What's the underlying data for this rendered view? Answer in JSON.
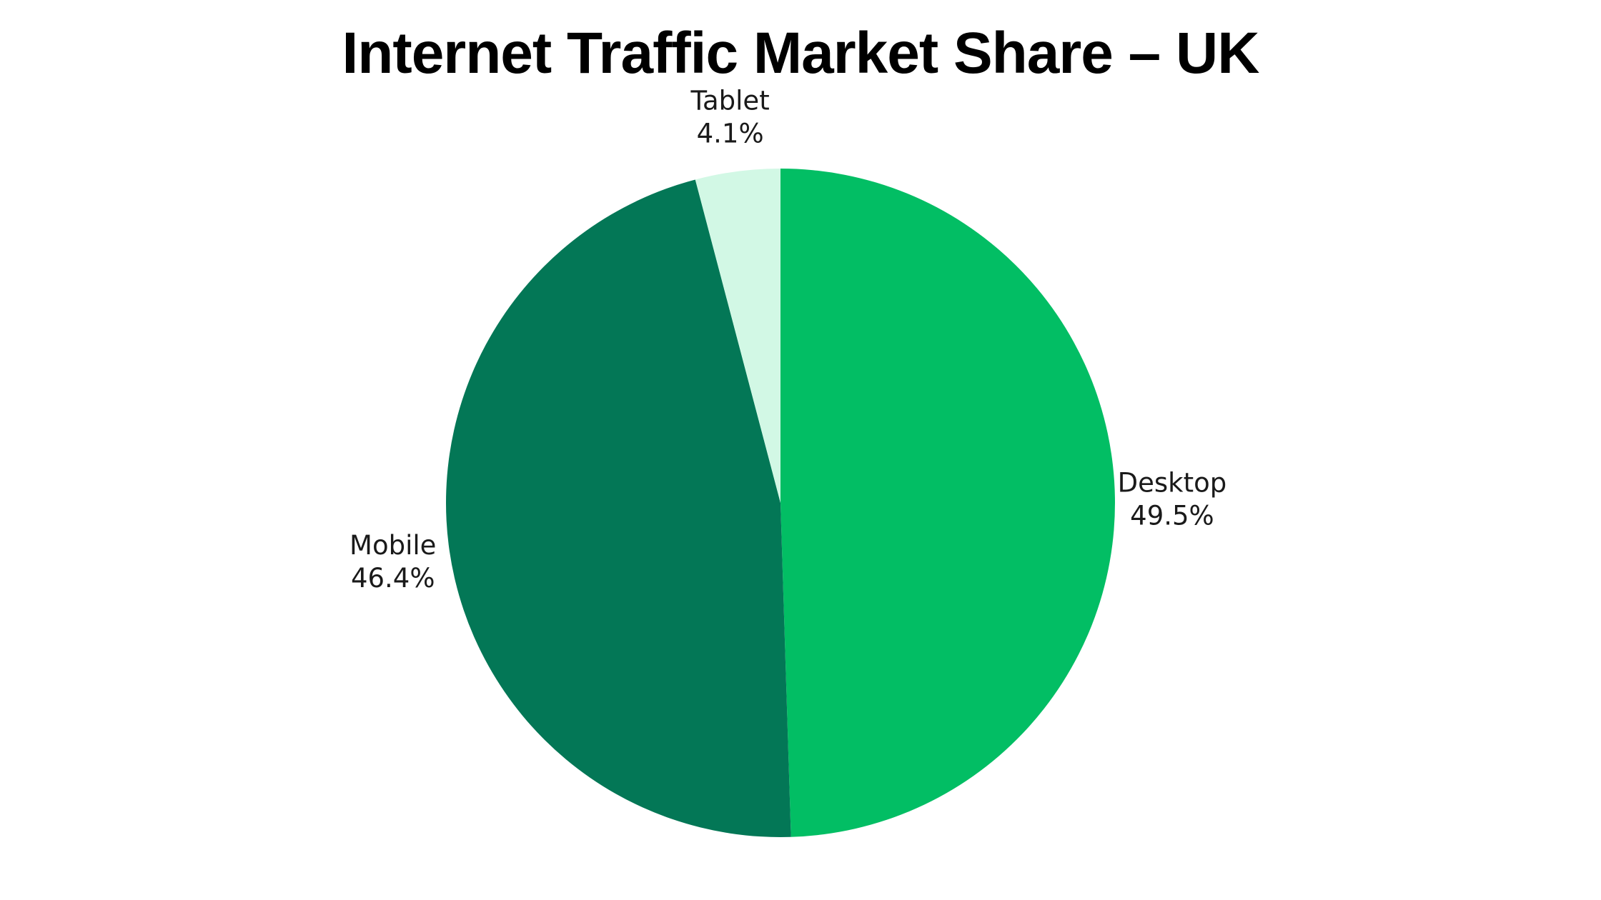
{
  "chart_data": {
    "type": "pie",
    "title": "Internet Traffic Market Share – UK",
    "slices": [
      {
        "label": "Desktop",
        "value": 49.5,
        "display": "49.5%",
        "color": "#02be64"
      },
      {
        "label": "Mobile",
        "value": 46.4,
        "display": "46.4%",
        "color": "#037756"
      },
      {
        "label": "Tablet",
        "value": 4.1,
        "display": "4.1%",
        "color": "#d2f8e5"
      }
    ],
    "start_angle": "12 o'clock",
    "direction": "clockwise",
    "legend": "none",
    "data_labels": "outside, category name and percent"
  }
}
